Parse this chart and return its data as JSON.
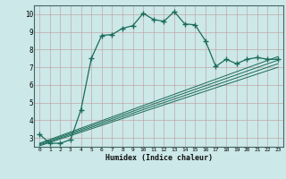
{
  "xlabel": "Humidex (Indice chaleur)",
  "bg_color": "#cce8e8",
  "grid_color": "#b0c8c8",
  "line_color": "#1a6b5a",
  "xlim": [
    -0.5,
    23.5
  ],
  "ylim": [
    2.5,
    10.5
  ],
  "xtick_labels": [
    "0",
    "1",
    "2",
    "3",
    "4",
    "5",
    "6",
    "7",
    "8",
    "9",
    "10",
    "11",
    "12",
    "13",
    "14",
    "15",
    "16",
    "17",
    "18",
    "19",
    "20",
    "21",
    "22",
    "23"
  ],
  "ytick_labels": [
    "3",
    "4",
    "5",
    "6",
    "7",
    "8",
    "9",
    "10"
  ],
  "ytick_vals": [
    3,
    4,
    5,
    6,
    7,
    8,
    9,
    10
  ],
  "main_x": [
    0,
    1,
    2,
    3,
    4,
    5,
    6,
    7,
    8,
    9,
    10,
    11,
    12,
    13,
    14,
    15,
    16,
    17,
    18,
    19,
    20,
    21,
    22,
    23
  ],
  "main_y": [
    3.2,
    2.7,
    2.7,
    2.9,
    4.6,
    7.5,
    8.8,
    8.85,
    9.2,
    9.35,
    10.05,
    9.7,
    9.6,
    10.15,
    9.45,
    9.4,
    8.5,
    7.05,
    7.45,
    7.2,
    7.45,
    7.55,
    7.45,
    7.45
  ],
  "diag_lines": [
    {
      "x": [
        0,
        23
      ],
      "y": [
        2.7,
        7.6
      ]
    },
    {
      "x": [
        0,
        23
      ],
      "y": [
        2.65,
        7.4
      ]
    },
    {
      "x": [
        0,
        23
      ],
      "y": [
        2.6,
        7.2
      ]
    },
    {
      "x": [
        0,
        23
      ],
      "y": [
        2.55,
        7.0
      ]
    }
  ]
}
